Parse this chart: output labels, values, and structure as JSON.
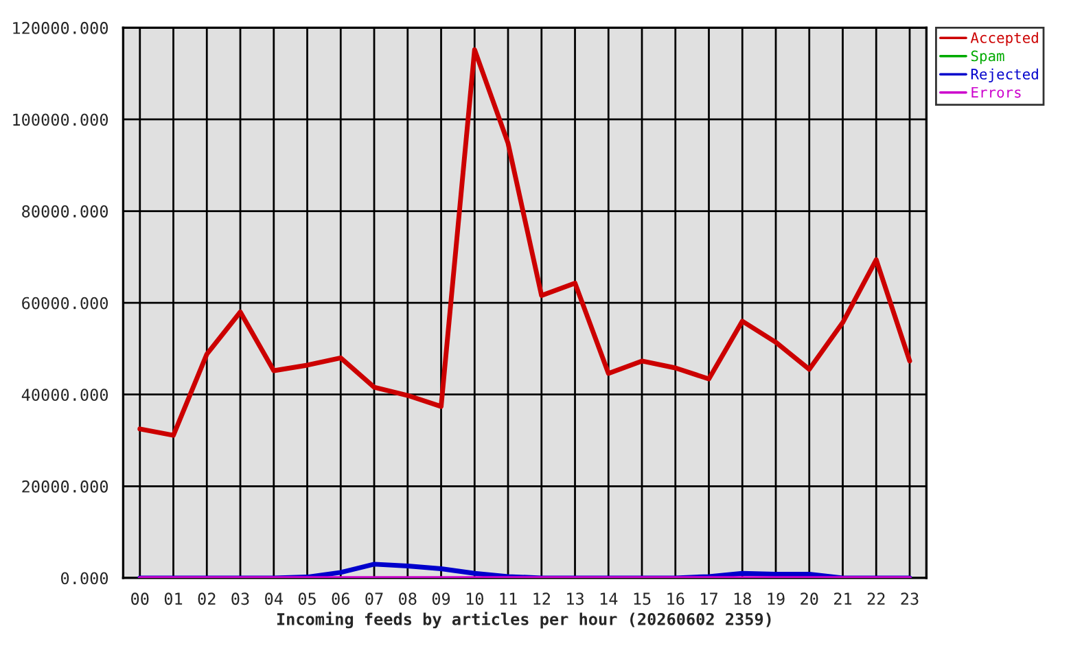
{
  "chart_data": {
    "type": "line",
    "xlabel": "Incoming feeds by articles per hour (20260602 2359)",
    "categories": [
      "00",
      "01",
      "02",
      "03",
      "04",
      "05",
      "06",
      "07",
      "08",
      "09",
      "10",
      "11",
      "12",
      "13",
      "14",
      "15",
      "16",
      "17",
      "18",
      "19",
      "20",
      "21",
      "22",
      "23"
    ],
    "series": [
      {
        "name": "Accepted",
        "color": "#cc0000",
        "values": [
          32500,
          31100,
          48800,
          58000,
          45200,
          46400,
          48000,
          41600,
          39800,
          37400,
          115200,
          94800,
          61600,
          64300,
          44600,
          47300,
          45800,
          43400,
          56000,
          51400,
          45500,
          55700,
          69400,
          47300
        ]
      },
      {
        "name": "Spam",
        "color": "#00aa00",
        "values": [
          null,
          null,
          null,
          null,
          null,
          null,
          null,
          null,
          null,
          null,
          null,
          null,
          null,
          null,
          null,
          null,
          null,
          null,
          null,
          null,
          null,
          null,
          null,
          null
        ]
      },
      {
        "name": "Rejected",
        "color": "#0000cc",
        "values": [
          0,
          0,
          0,
          0,
          0,
          200,
          1200,
          3000,
          2600,
          2000,
          1000,
          300,
          0,
          0,
          0,
          0,
          0,
          300,
          1000,
          800,
          800,
          0,
          0,
          0
        ]
      },
      {
        "name": "Errors",
        "color": "#cc00cc",
        "values": [
          0,
          0,
          0,
          0,
          0,
          0,
          0,
          0,
          0,
          0,
          0,
          0,
          0,
          0,
          0,
          0,
          0,
          0,
          0,
          0,
          0,
          0,
          0,
          0
        ]
      }
    ],
    "ylim": [
      0,
      120000
    ],
    "yticks": [
      {
        "value": 0,
        "label": "0.000"
      },
      {
        "value": 20000,
        "label": "20000.000"
      },
      {
        "value": 40000,
        "label": "40000.000"
      },
      {
        "value": 60000,
        "label": "60000.000"
      },
      {
        "value": 80000,
        "label": "80000.000"
      },
      {
        "value": 100000,
        "label": "100000.000"
      },
      {
        "value": 120000,
        "label": "120000.000"
      }
    ],
    "grid": true,
    "legend": "top right"
  }
}
